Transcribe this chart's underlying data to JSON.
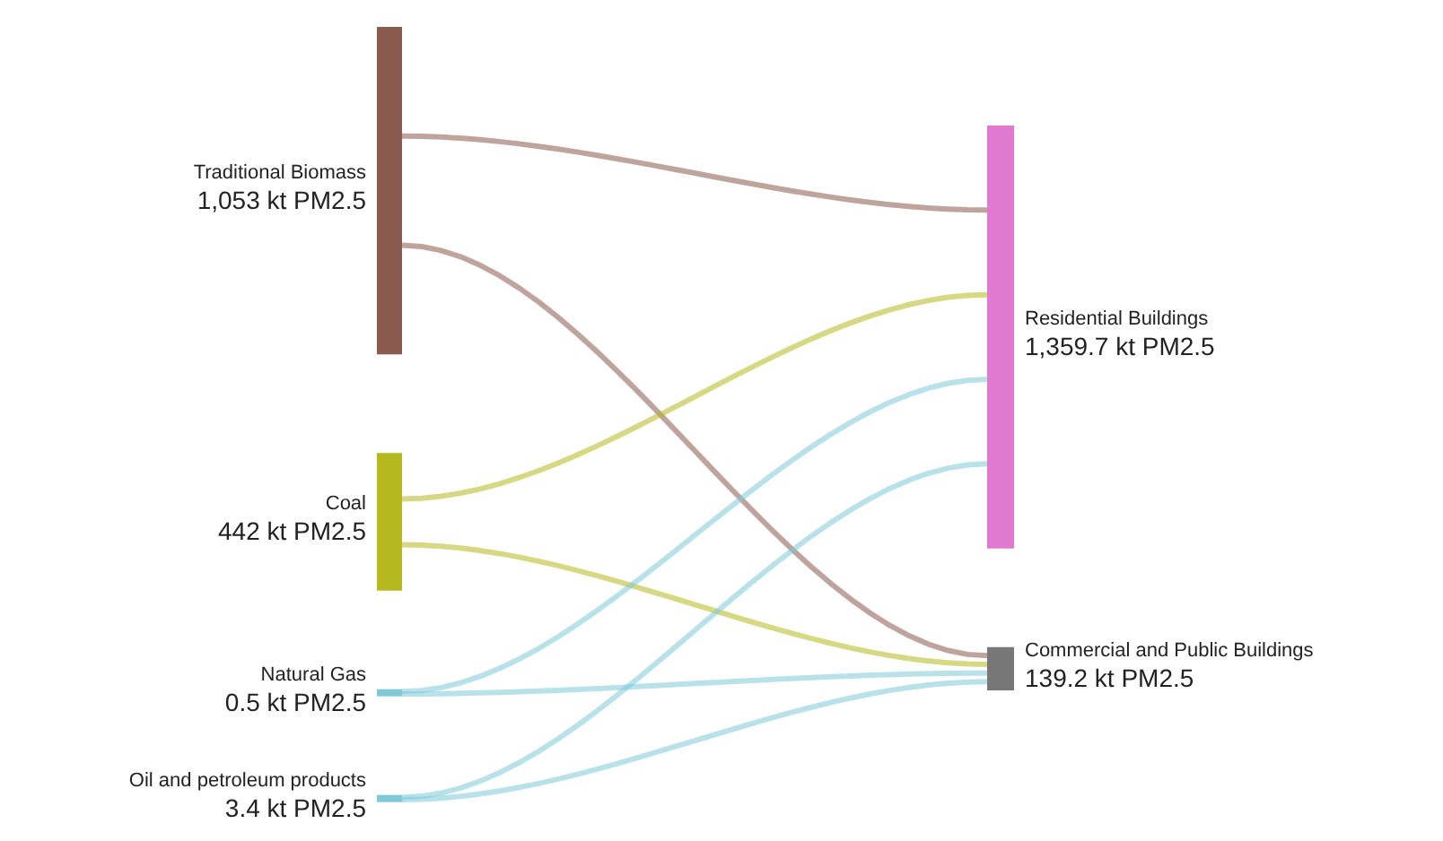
{
  "chart_data": {
    "type": "other",
    "categories": [
      "Traditional Biomass",
      "Coal",
      "Natural Gas",
      "Oil and petroleum products",
      "Residential Buildings",
      "Commercial and Public Buildings"
    ],
    "series": [
      {
        "values": [
          1053,
          442,
          0.5,
          3.4,
          null,
          null
        ],
        "colors": [
          "#8b5a4e",
          "#b5b81f",
          "#7ec8d8",
          "#7ec8d8",
          null,
          null
        ],
        "value_labels": [
          "1,053 kt PM2.5",
          "442 kt PM2.5",
          "0.5 kt PM2.5",
          "3.4 kt PM2.5",
          null,
          null
        ]
      },
      {
        "values": [
          null,
          null,
          null,
          null,
          1359.7,
          139.2
        ],
        "colors": [
          null,
          null,
          null,
          null,
          "#e07ad0",
          "#777777"
        ],
        "value_labels": [
          null,
          null,
          null,
          null,
          "1,359.7 kt PM2.5",
          "139.2 kt PM2.5"
        ]
      }
    ]
  }
}
